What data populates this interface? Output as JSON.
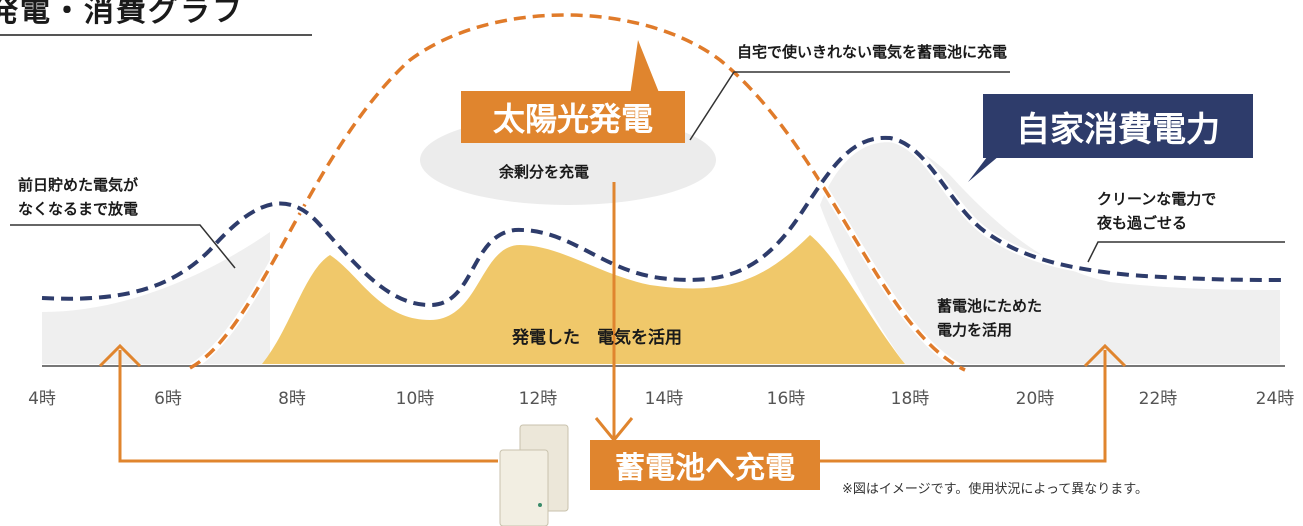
{
  "title": "発電・消費グラフ",
  "labels": {
    "solar": "太陽光発電",
    "consumption": "自家消費電力",
    "surplus_charge": "余剰分を充電",
    "store_excess": "自宅で使いきれない電気を蓄電池に充電",
    "morning_discharge": [
      "前日貯めた電気が",
      "なくなるまで放電"
    ],
    "night_clean": [
      "クリーンな電力で",
      "夜も過ごせる"
    ],
    "battery_use": [
      "蓄電池にためた",
      "電力を活用"
    ],
    "solar_use": "発電した　電気を活用",
    "battery_charge": "蓄電池へ充電"
  },
  "footnote": "※図はイメージです。使用状況によって異なります。",
  "axis": {
    "ticks": [
      "4時",
      "6時",
      "8時",
      "10時",
      "12時",
      "14時",
      "16時",
      "18時",
      "20時",
      "22時",
      "24時"
    ]
  },
  "colors": {
    "solar_line": "#e07b2a",
    "consumption_line": "#2e3c6b",
    "solar_fill": "#f0c86a",
    "battery_fill": "#efefef",
    "arrow": "#e0852e"
  },
  "icons": {
    "battery_unit": "battery-storage-unit-icon"
  }
}
